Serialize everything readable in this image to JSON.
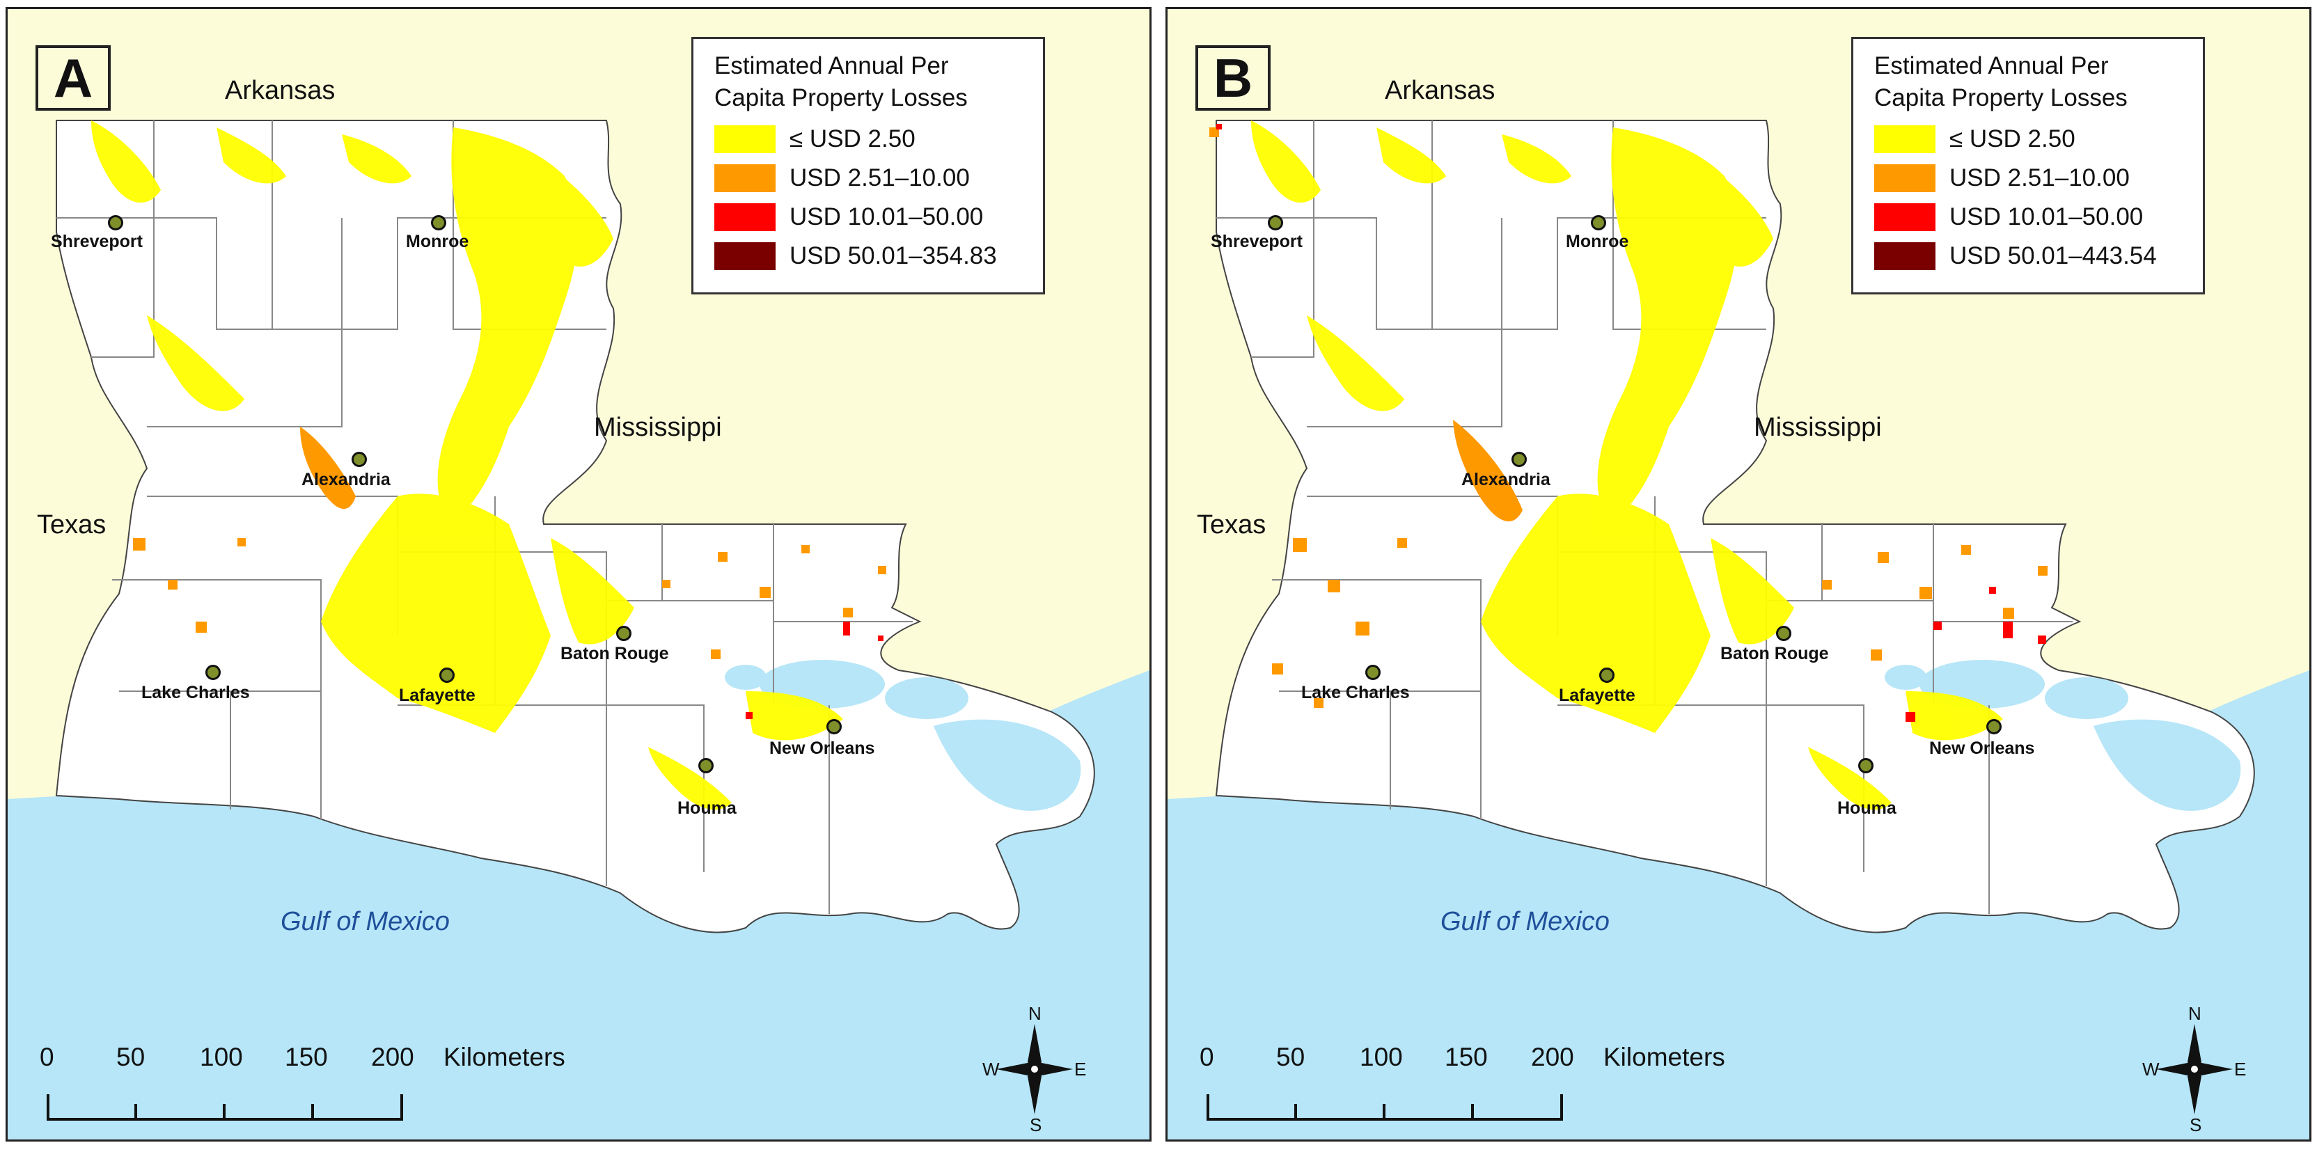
{
  "panels": [
    {
      "letter": "A",
      "legend": {
        "title_line1": "Estimated Annual Per",
        "title_line2": "Capita Property Losses",
        "items": [
          {
            "label": "≤ USD 2.50",
            "color": "#ffff00"
          },
          {
            "label": "USD 2.51–10.00",
            "color": "#ff9900"
          },
          {
            "label": "USD 10.01–50.00",
            "color": "#ff0000"
          },
          {
            "label": "USD 50.01–354.83",
            "color": "#7a0000"
          }
        ]
      }
    },
    {
      "letter": "B",
      "legend": {
        "title_line1": "Estimated Annual Per",
        "title_line2": "Capita Property Losses",
        "items": [
          {
            "label": "≤ USD 2.50",
            "color": "#ffff00"
          },
          {
            "label": "USD 2.51–10.00",
            "color": "#ff9900"
          },
          {
            "label": "USD 10.01–50.00",
            "color": "#ff0000"
          },
          {
            "label": "USD 50.01–443.54",
            "color": "#7a0000"
          }
        ]
      }
    }
  ],
  "places": {
    "arkansas": "Arkansas",
    "mississippi": "Mississippi",
    "texas": "Texas",
    "gulf": "Gulf of Mexico"
  },
  "cities": {
    "shreveport": "Shreveport",
    "monroe": "Monroe",
    "alexandria": "Alexandria",
    "lake_charles": "Lake Charles",
    "lafayette": "Lafayette",
    "baton_rouge": "Baton Rouge",
    "new_orleans": "New Orleans",
    "houma": "Houma"
  },
  "scale": {
    "ticks": [
      "0",
      "50",
      "100",
      "150",
      "200"
    ],
    "unit": "Kilometers"
  },
  "compass": {
    "n": "N",
    "s": "S",
    "e": "E",
    "w": "W"
  },
  "colors": {
    "land": "#fdfcd9",
    "water": "#b6e6f8",
    "louisiana": "#ffffff",
    "low_loss": "#ffff00",
    "mid_loss": "#ff9900",
    "high_loss": "#ff0000",
    "extreme_loss": "#7a0000"
  }
}
